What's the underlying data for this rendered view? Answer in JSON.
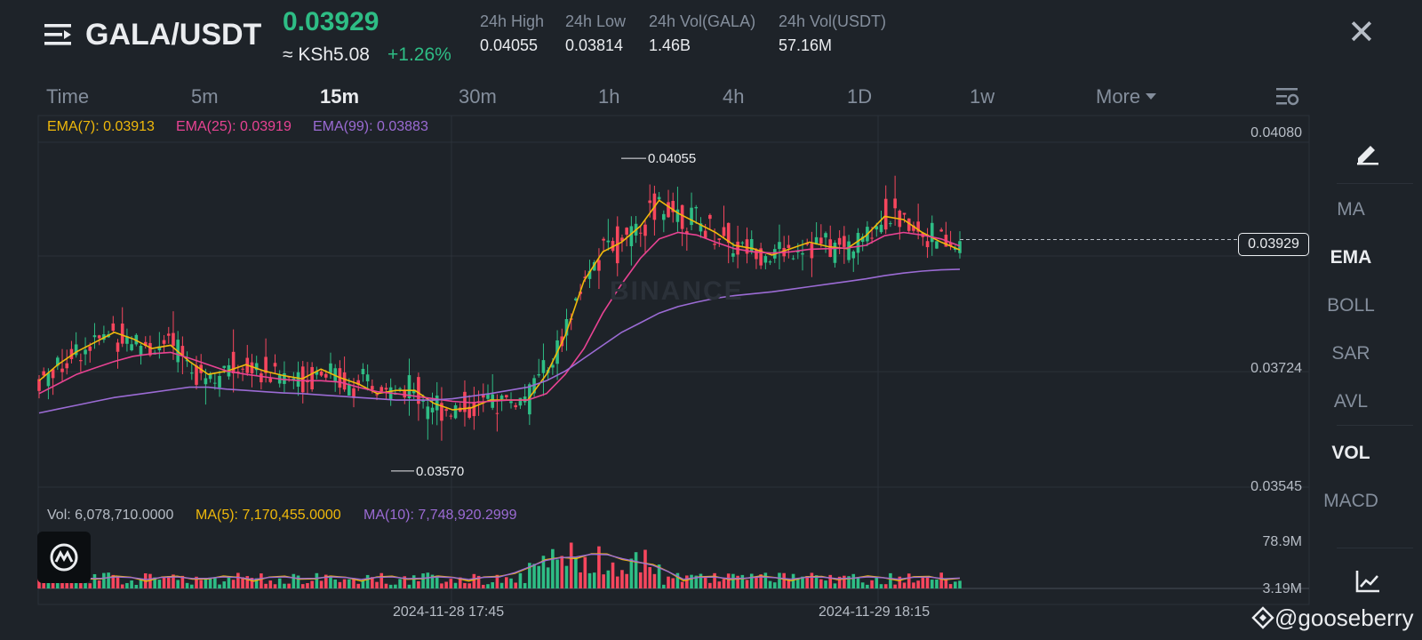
{
  "header": {
    "pair": "GALA/USDT",
    "last_price": "0.03929",
    "fiat_price": "≈ KSh5.08",
    "change_pct": "+1.26%",
    "stats": [
      {
        "label": "24h High",
        "value": "0.04055"
      },
      {
        "label": "24h Low",
        "value": "0.03814"
      },
      {
        "label": "24h Vol(GALA)",
        "value": "1.46B"
      },
      {
        "label": "24h Vol(USDT)",
        "value": "57.16M"
      }
    ]
  },
  "intervals": [
    "Time",
    "5m",
    "15m",
    "30m",
    "1h",
    "4h",
    "1D",
    "1w",
    "More"
  ],
  "active_interval": "15m",
  "indicators": [
    "MA",
    "EMA",
    "BOLL",
    "SAR",
    "AVL",
    "VOL",
    "MACD"
  ],
  "active_indicators": [
    "EMA",
    "VOL"
  ],
  "icons": [
    "menu-icon",
    "close-icon",
    "chart-settings-icon",
    "draw-tool-icon",
    "indicator-chart-icon",
    "app-logo-icon",
    "binance-logo-icon"
  ],
  "ema_labels": [
    "EMA(7): 0.03913",
    "EMA(25): 0.03919",
    "EMA(99): 0.03883"
  ],
  "vol_labels": [
    "Vol: 6,078,710.0000",
    "MA(5): 7,170,455.0000",
    "MA(10): 7,748,920.2999"
  ],
  "price_axis": [
    "0.04080",
    "0.03724",
    "0.03545"
  ],
  "last_price_tag": "0.03929",
  "vol_axis": [
    "78.9M",
    "3.19M"
  ],
  "time_axis": [
    "2024-11-28 17:45",
    "2024-11-29 18:15"
  ],
  "high_marker": "0.04055",
  "low_marker": "0.03570",
  "watermark": "BINANCE",
  "credit": "@gooseberry",
  "colors": {
    "up": "#2ebd85",
    "down": "#f6465d",
    "ema7": "#f0b90b",
    "ema25": "#e84393",
    "ema99": "#9b6bd4",
    "bg": "#1e2329"
  },
  "chart_data": {
    "type": "line",
    "title": "",
    "ylim": [
      0.03545,
      0.0408
    ],
    "series": [
      {
        "name": "EMA(7)",
        "values": [
          0.0371,
          0.03735,
          0.03755,
          0.0377,
          0.03785,
          0.03775,
          0.0376,
          0.03765,
          0.0374,
          0.0372,
          0.03725,
          0.03735,
          0.03725,
          0.03718,
          0.03713,
          0.03728,
          0.03715,
          0.03705,
          0.0369,
          0.03695,
          0.03695,
          0.03675,
          0.03665,
          0.03668,
          0.0368,
          0.0368,
          0.0368,
          0.0372,
          0.0378,
          0.03865,
          0.0391,
          0.03925,
          0.0395,
          0.0399,
          0.0397,
          0.03955,
          0.0394,
          0.0392,
          0.03915,
          0.03905,
          0.03915,
          0.03925,
          0.03918,
          0.03915,
          0.03935,
          0.03965,
          0.0396,
          0.0394,
          0.03925,
          0.03913
        ]
      },
      {
        "name": "EMA(25)",
        "values": [
          0.0369,
          0.03705,
          0.0372,
          0.0373,
          0.0374,
          0.03748,
          0.03752,
          0.03754,
          0.03745,
          0.03735,
          0.03725,
          0.0372,
          0.03716,
          0.03712,
          0.0371,
          0.0371,
          0.03708,
          0.037,
          0.03693,
          0.0369,
          0.03686,
          0.03682,
          0.03678,
          0.03676,
          0.03678,
          0.0368,
          0.0368,
          0.0369,
          0.0372,
          0.0376,
          0.03815,
          0.0386,
          0.039,
          0.0393,
          0.0394,
          0.03936,
          0.03925,
          0.03915,
          0.0391,
          0.03908,
          0.0391,
          0.03914,
          0.03915,
          0.03916,
          0.0392,
          0.03935,
          0.0394,
          0.03936,
          0.0393,
          0.03919
        ]
      },
      {
        "name": "EMA(99)",
        "values": [
          0.0366,
          0.03666,
          0.03672,
          0.03678,
          0.03684,
          0.03688,
          0.03692,
          0.03696,
          0.037,
          0.037,
          0.03697,
          0.03695,
          0.03693,
          0.03691,
          0.0369,
          0.03688,
          0.03686,
          0.03684,
          0.03682,
          0.0368,
          0.0368,
          0.0368,
          0.03682,
          0.03686,
          0.0369,
          0.03695,
          0.037,
          0.0371,
          0.03725,
          0.03745,
          0.03765,
          0.03785,
          0.038,
          0.03815,
          0.03825,
          0.03832,
          0.03838,
          0.03842,
          0.03845,
          0.03848,
          0.03852,
          0.03856,
          0.0386,
          0.03864,
          0.03868,
          0.03873,
          0.03877,
          0.0388,
          0.03882,
          0.03883
        ]
      }
    ]
  }
}
